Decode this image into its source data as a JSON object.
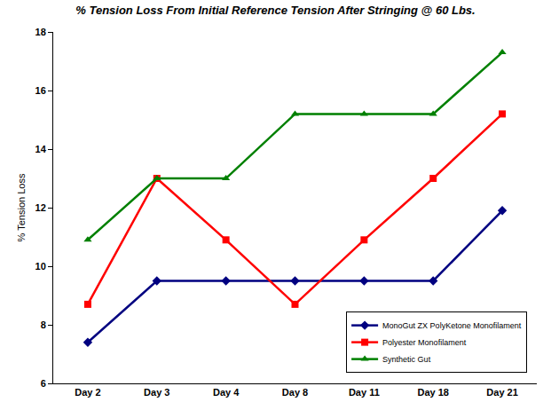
{
  "chart_data": {
    "type": "line",
    "title": "% Tension Loss From Initial Reference Tension After Stringing @ 60 Lbs.",
    "y_label": "% Tension Loss",
    "categories": [
      "Day 2",
      "Day 3",
      "Day 4",
      "Day 8",
      "Day 11",
      "Day 18",
      "Day 21"
    ],
    "series": [
      {
        "name": "MonoGut ZX PolyKetone Monofilament",
        "color": "#000080",
        "marker": "diamond",
        "values": [
          7.4,
          9.5,
          9.5,
          9.5,
          9.5,
          9.5,
          11.9
        ]
      },
      {
        "name": "Polyester Monofilament",
        "color": "#ff0000",
        "marker": "square",
        "values": [
          8.7,
          13.0,
          10.9,
          8.7,
          10.9,
          13.0,
          15.2
        ]
      },
      {
        "name": "Synthetic Gut",
        "color": "#008000",
        "marker": "triangle",
        "values": [
          10.9,
          13.0,
          13.0,
          15.2,
          15.2,
          15.2,
          17.3
        ]
      }
    ],
    "ylim": [
      6,
      18
    ],
    "yticks": [
      6,
      8,
      10,
      12,
      14,
      16,
      18
    ],
    "grid": false,
    "legend": "lower right"
  }
}
